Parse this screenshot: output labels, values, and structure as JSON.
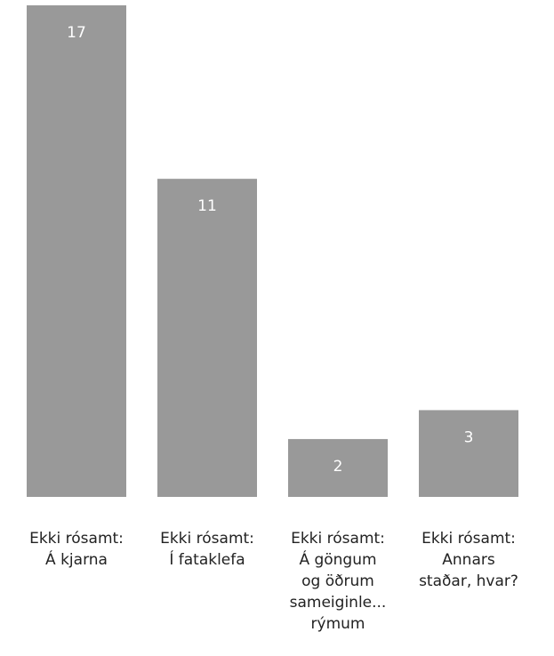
{
  "chart_data": {
    "type": "bar",
    "categories": [
      [
        "Ekki rósamt:",
        "Á kjarna"
      ],
      [
        "Ekki rósamt:",
        "Í fataklefa"
      ],
      [
        "Ekki rósamt:",
        "Á göngum",
        "og öðrum",
        "sameiginle...",
        "rýmum"
      ],
      [
        "Ekki rósamt:",
        "Annars",
        "staðar, hvar?"
      ]
    ],
    "values": [
      17,
      11,
      2,
      3
    ],
    "title": "",
    "xlabel": "",
    "ylabel": "",
    "ylim": [
      0,
      17
    ],
    "bar_color": "#999999",
    "value_label_color": "#ffffff",
    "grid": false,
    "legend": "none"
  }
}
